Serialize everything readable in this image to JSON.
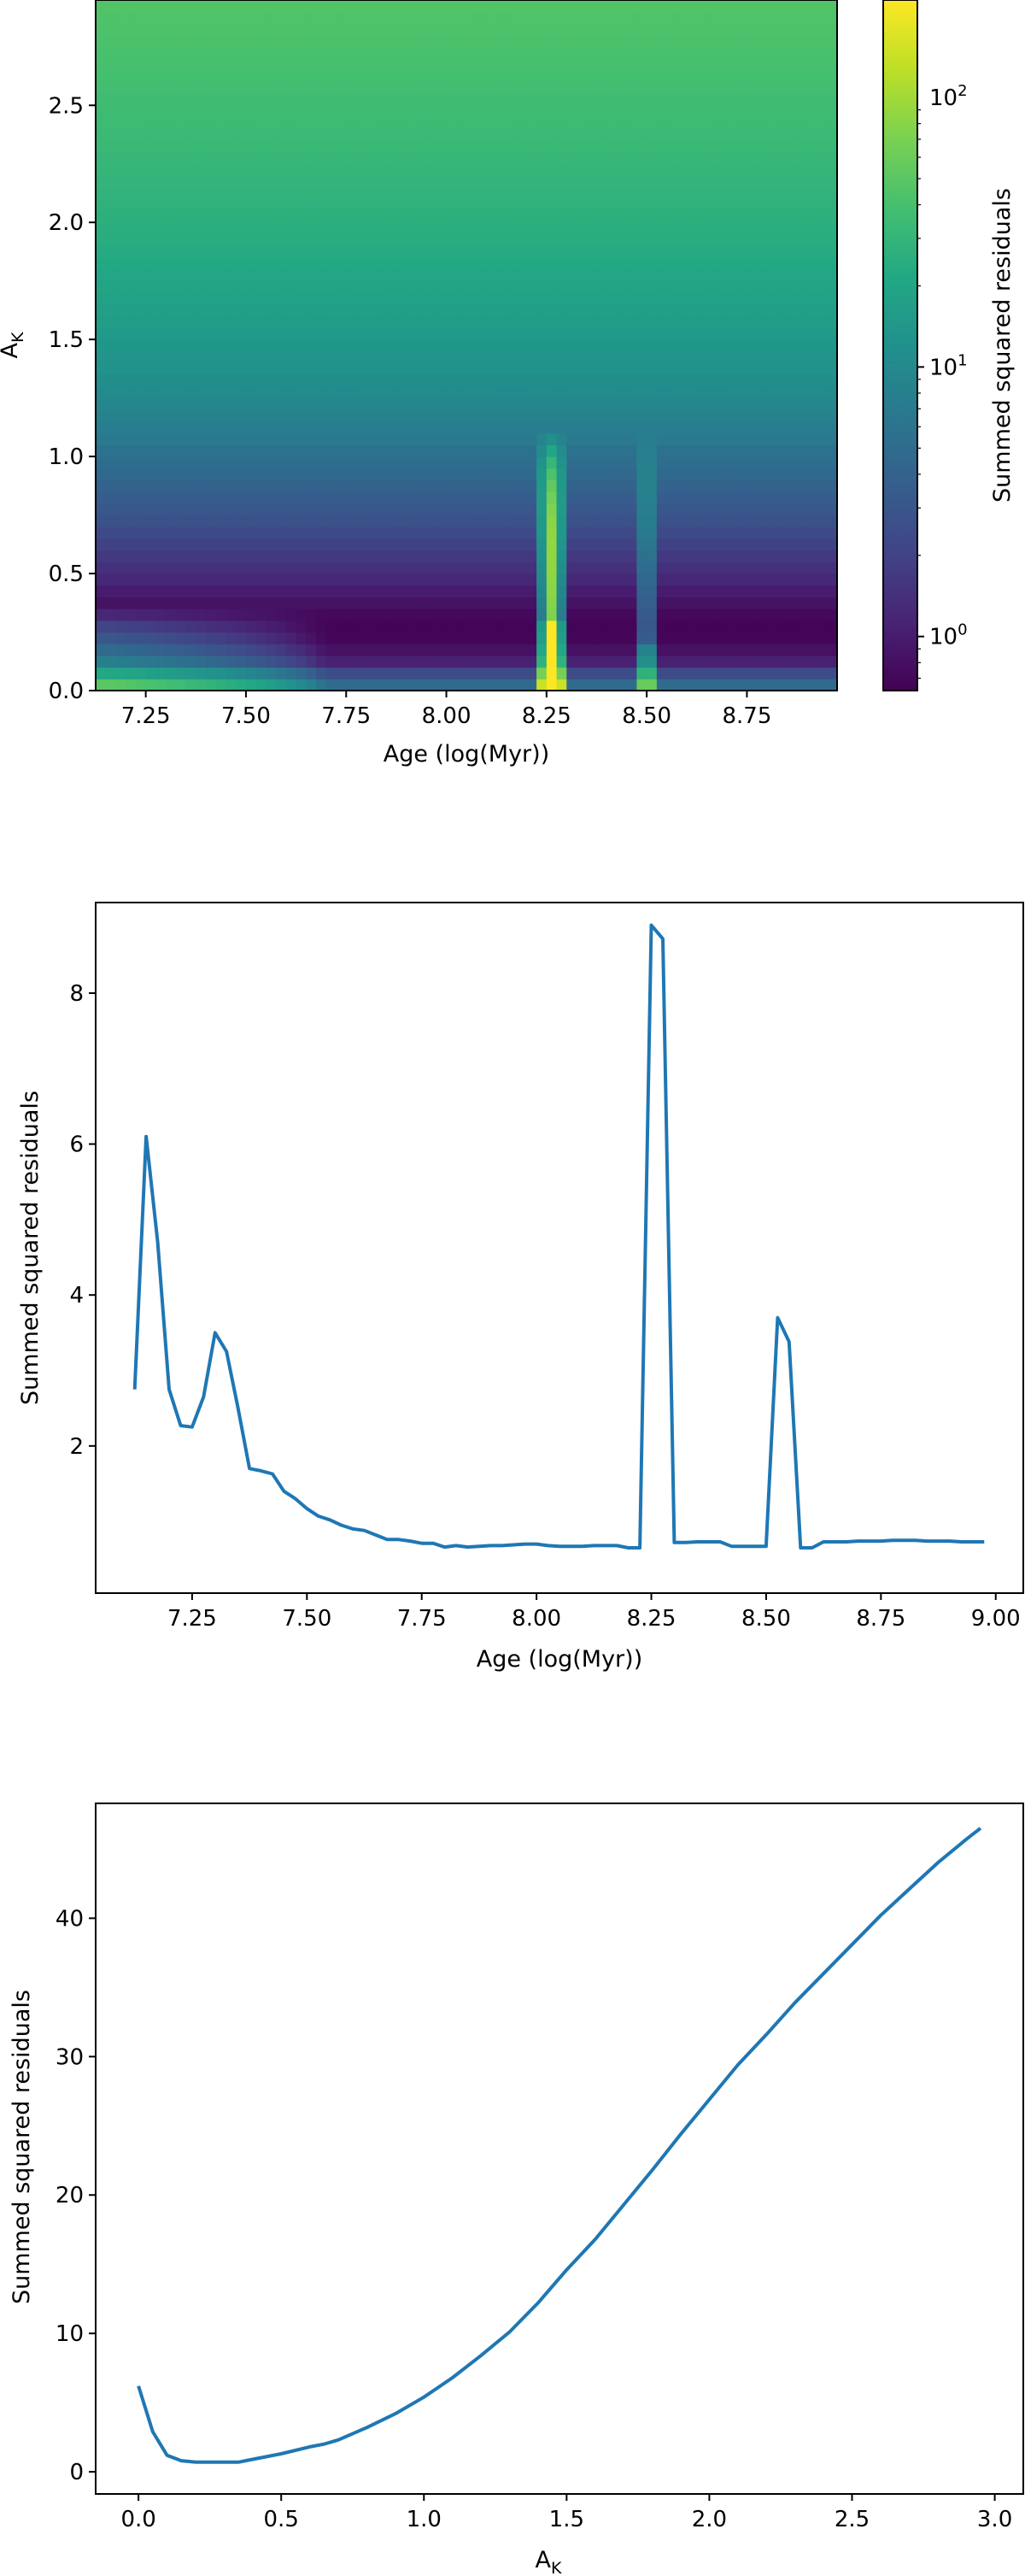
{
  "chart_data": [
    {
      "type": "heatmap",
      "xlabel": "Age (log(Myr))",
      "ylabel": "A_K",
      "xlim": [
        7.125,
        8.975
      ],
      "ylim": [
        0.0,
        2.95
      ],
      "xticks": [
        "7.25",
        "7.50",
        "7.75",
        "8.00",
        "8.25",
        "8.50",
        "8.75"
      ],
      "xtick_values": [
        7.25,
        7.5,
        7.75,
        8.0,
        8.25,
        8.5,
        8.75
      ],
      "yticks": [
        "0.0",
        "0.5",
        "1.0",
        "1.5",
        "2.0",
        "2.5"
      ],
      "ytick_values": [
        0.0,
        0.5,
        1.0,
        1.5,
        2.0,
        2.5
      ],
      "x_step": 0.025,
      "y_step": 0.05,
      "colormap": "viridis",
      "color_scale": "log",
      "colorbar": {
        "label": "Summed squared residuals",
        "range": [
          0.63,
          230
        ],
        "ticks": [
          "10^0",
          "10^1",
          "10^2"
        ],
        "tick_values": [
          1,
          10,
          100
        ]
      },
      "profile_A_K": [
        0,
        0.1,
        0.2,
        0.3,
        0.4,
        0.5,
        0.6,
        0.8,
        1.0,
        1.5,
        2.0,
        2.5,
        2.95
      ],
      "profile_values": [
        6.2,
        1.2,
        0.7,
        0.65,
        0.9,
        1.3,
        1.8,
        3.3,
        5.4,
        14.5,
        26.0,
        36.0,
        46.0
      ]
    },
    {
      "type": "line",
      "xlabel": "Age (log(Myr))",
      "ylabel": "Summed squared residuals",
      "xlim": [
        7.04,
        9.06
      ],
      "ylim": [
        0.05,
        9.2
      ],
      "xticks": [
        "7.25",
        "7.50",
        "7.75",
        "8.00",
        "8.25",
        "8.50",
        "8.75",
        "9.00"
      ],
      "xtick_values": [
        7.25,
        7.5,
        7.75,
        8.0,
        8.25,
        8.5,
        8.75,
        9.0
      ],
      "yticks": [
        "2",
        "4",
        "6",
        "8"
      ],
      "ytick_values": [
        2,
        4,
        6,
        8
      ],
      "color": "#1f77b4",
      "x": [
        7.125,
        7.15,
        7.175,
        7.2,
        7.225,
        7.25,
        7.275,
        7.3,
        7.325,
        7.35,
        7.375,
        7.4,
        7.425,
        7.45,
        7.475,
        7.5,
        7.525,
        7.55,
        7.575,
        7.6,
        7.625,
        7.65,
        7.675,
        7.7,
        7.725,
        7.75,
        7.775,
        7.8,
        7.825,
        7.85,
        7.875,
        7.9,
        7.925,
        7.95,
        7.975,
        8.0,
        8.025,
        8.05,
        8.075,
        8.1,
        8.125,
        8.15,
        8.175,
        8.2,
        8.225,
        8.25,
        8.275,
        8.3,
        8.325,
        8.35,
        8.375,
        8.4,
        8.425,
        8.45,
        8.475,
        8.5,
        8.525,
        8.55,
        8.575,
        8.6,
        8.625,
        8.65,
        8.675,
        8.7,
        8.725,
        8.75,
        8.775,
        8.8,
        8.825,
        8.85,
        8.875,
        8.9,
        8.925,
        8.95,
        8.975
      ],
      "y": [
        2.75,
        6.1,
        4.7,
        2.75,
        2.27,
        2.25,
        2.65,
        3.5,
        3.25,
        2.5,
        1.7,
        1.67,
        1.63,
        1.4,
        1.3,
        1.17,
        1.07,
        1.02,
        0.95,
        0.9,
        0.88,
        0.82,
        0.76,
        0.76,
        0.74,
        0.71,
        0.71,
        0.66,
        0.68,
        0.66,
        0.67,
        0.68,
        0.68,
        0.69,
        0.7,
        0.7,
        0.68,
        0.67,
        0.67,
        0.67,
        0.68,
        0.68,
        0.68,
        0.65,
        0.65,
        8.9,
        8.72,
        0.72,
        0.72,
        0.73,
        0.73,
        0.73,
        0.67,
        0.67,
        0.67,
        0.67,
        3.7,
        3.38,
        0.65,
        0.65,
        0.73,
        0.73,
        0.73,
        0.74,
        0.74,
        0.74,
        0.75,
        0.75,
        0.75,
        0.74,
        0.74,
        0.74,
        0.73,
        0.73,
        0.73
      ]
    },
    {
      "type": "line",
      "xlabel": "A_K",
      "ylabel": "Summed squared residuals",
      "xlim": [
        -0.15,
        3.1
      ],
      "ylim": [
        -1.6,
        48.3
      ],
      "xticks": [
        "0.0",
        "0.5",
        "1.0",
        "1.5",
        "2.0",
        "2.5",
        "3.0"
      ],
      "xtick_values": [
        0.0,
        0.5,
        1.0,
        1.5,
        2.0,
        2.5,
        3.0
      ],
      "yticks": [
        "0",
        "10",
        "20",
        "30",
        "40"
      ],
      "ytick_values": [
        0,
        10,
        20,
        30,
        40
      ],
      "color": "#1f77b4",
      "x": [
        0.0,
        0.05,
        0.1,
        0.15,
        0.2,
        0.25,
        0.3,
        0.35,
        0.4,
        0.5,
        0.6,
        0.65,
        0.7,
        0.8,
        0.9,
        1.0,
        1.1,
        1.2,
        1.3,
        1.4,
        1.5,
        1.6,
        1.7,
        1.8,
        1.9,
        2.0,
        2.1,
        2.2,
        2.3,
        2.4,
        2.5,
        2.6,
        2.7,
        2.8,
        2.9,
        2.95
      ],
      "y": [
        6.2,
        2.9,
        1.2,
        0.8,
        0.7,
        0.7,
        0.7,
        0.7,
        0.9,
        1.3,
        1.8,
        2.0,
        2.3,
        3.2,
        4.2,
        5.4,
        6.8,
        8.4,
        10.1,
        12.2,
        14.6,
        16.8,
        19.3,
        21.8,
        24.4,
        26.9,
        29.4,
        31.6,
        33.9,
        36.0,
        38.1,
        40.2,
        42.1,
        44.0,
        45.7,
        46.5
      ]
    }
  ]
}
